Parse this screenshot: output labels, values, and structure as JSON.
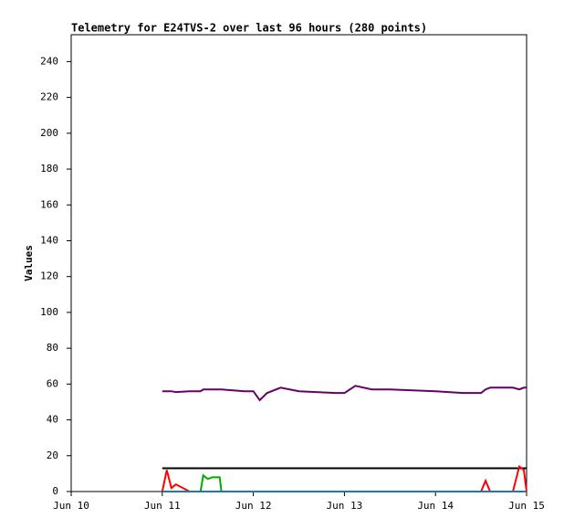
{
  "chart_data": {
    "type": "line",
    "title": "Telemetry for E24TVS-2 over last 96 hours (280 points)",
    "y_label": "Values",
    "x": [
      1,
      1.05,
      1.1,
      1.15,
      1.3,
      1.42,
      1.45,
      1.5,
      1.55,
      1.6,
      1.63,
      1.65,
      1.9,
      2.0,
      2.07,
      2.15,
      2.3,
      2.5,
      2.9,
      3.0,
      3.12,
      3.3,
      3.5,
      4.0,
      4.3,
      4.5,
      4.55,
      4.6,
      4.85,
      4.92,
      4.97,
      5.0
    ],
    "series": [
      {
        "color": "#660066",
        "values": [
          56,
          56,
          56,
          55.5,
          56,
          56,
          57,
          57,
          57,
          57,
          57,
          57,
          56,
          56,
          51,
          55,
          58,
          56,
          55,
          55,
          59,
          57,
          57,
          56,
          55,
          55,
          57,
          58,
          58,
          57,
          58,
          58
        ]
      },
      {
        "color": "#000000",
        "values": [
          13,
          13,
          13,
          13,
          13,
          13,
          13,
          13,
          13,
          13,
          13,
          13,
          13,
          13,
          13,
          13,
          13,
          13,
          13,
          13,
          13,
          13,
          13,
          13,
          13,
          13,
          13,
          13,
          13,
          13,
          13,
          13
        ]
      },
      {
        "color": "#ff0000",
        "values": [
          0,
          12,
          2,
          4,
          0,
          0,
          0,
          0,
          0,
          0,
          0,
          0,
          0,
          0,
          0,
          0,
          0,
          0,
          0,
          0,
          0,
          0,
          0,
          0,
          0,
          0,
          6,
          0,
          0,
          14,
          12,
          0
        ]
      },
      {
        "color": "#00aa00",
        "values": [
          null,
          null,
          null,
          null,
          null,
          0,
          9,
          7,
          8,
          8,
          8,
          0,
          null,
          null,
          null,
          null,
          null,
          null,
          null,
          null,
          null,
          null,
          null,
          null,
          null,
          null,
          null,
          null,
          null,
          null,
          null,
          null
        ]
      },
      {
        "color": "#1f77b4",
        "values": [
          0,
          0,
          0,
          0,
          0,
          0,
          0,
          0,
          0,
          0,
          0,
          0,
          0,
          0,
          0,
          0,
          0,
          0,
          0,
          0,
          0,
          0,
          0,
          0,
          0,
          0,
          0,
          0,
          0,
          0,
          0,
          0
        ]
      }
    ],
    "xlim": [
      0,
      5
    ],
    "xticks": [
      {
        "value": 0,
        "label": "Jun 10"
      },
      {
        "value": 1,
        "label": "Jun 11"
      },
      {
        "value": 2,
        "label": "Jun 12"
      },
      {
        "value": 3,
        "label": "Jun 13"
      },
      {
        "value": 4,
        "label": "Jun 14"
      },
      {
        "value": 5,
        "label": "Jun 15"
      }
    ],
    "ylim": [
      0,
      255
    ],
    "yticks": [
      0,
      20,
      40,
      60,
      80,
      100,
      120,
      140,
      160,
      180,
      200,
      220,
      240
    ]
  }
}
